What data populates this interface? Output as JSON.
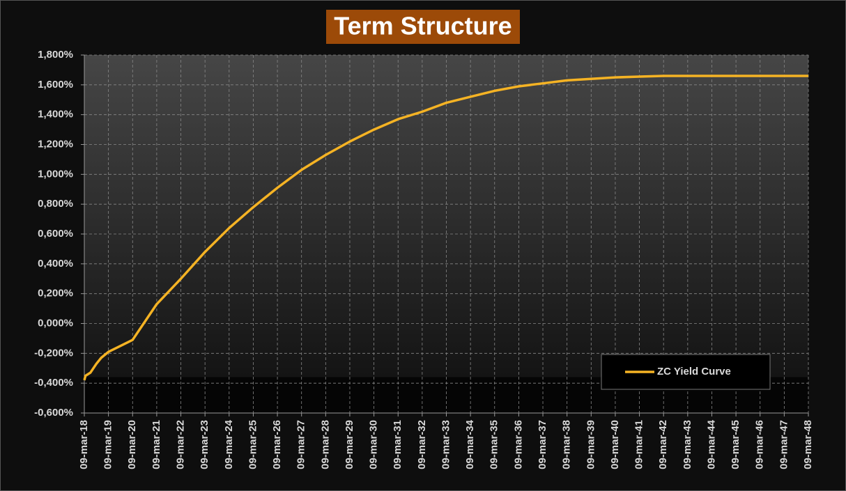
{
  "chart_data": {
    "type": "line",
    "title": "Term Structure",
    "x": [
      0,
      0.05,
      0.25,
      0.5,
      0.7,
      1,
      2,
      3,
      4,
      5,
      6,
      7,
      8,
      9,
      10,
      11,
      12,
      13,
      14,
      15,
      16,
      17,
      18,
      19,
      20,
      21,
      22,
      23,
      24,
      30
    ],
    "series": [
      {
        "name": "ZC Yield Curve",
        "color": "#f5b324",
        "values": [
          -0.38,
          -0.35,
          -0.33,
          -0.27,
          -0.23,
          -0.19,
          -0.11,
          0.13,
          0.3,
          0.48,
          0.64,
          0.78,
          0.91,
          1.03,
          1.13,
          1.22,
          1.3,
          1.37,
          1.42,
          1.48,
          1.52,
          1.56,
          1.59,
          1.61,
          1.63,
          1.64,
          1.65,
          1.655,
          1.66,
          1.66
        ]
      }
    ],
    "xlim": [
      0,
      30
    ],
    "xticks": [
      {
        "value": 0,
        "label": "09-mar-18"
      },
      {
        "value": 1,
        "label": "09-mar-19"
      },
      {
        "value": 2,
        "label": "09-mar-20"
      },
      {
        "value": 3,
        "label": "09-mar-21"
      },
      {
        "value": 4,
        "label": "09-mar-22"
      },
      {
        "value": 5,
        "label": "09-mar-23"
      },
      {
        "value": 6,
        "label": "09-mar-24"
      },
      {
        "value": 7,
        "label": "09-mar-25"
      },
      {
        "value": 8,
        "label": "09-mar-26"
      },
      {
        "value": 9,
        "label": "09-mar-27"
      },
      {
        "value": 10,
        "label": "09-mar-28"
      },
      {
        "value": 11,
        "label": "09-mar-29"
      },
      {
        "value": 12,
        "label": "09-mar-30"
      },
      {
        "value": 13,
        "label": "09-mar-31"
      },
      {
        "value": 14,
        "label": "09-mar-32"
      },
      {
        "value": 15,
        "label": "09-mar-33"
      },
      {
        "value": 16,
        "label": "09-mar-34"
      },
      {
        "value": 17,
        "label": "09-mar-35"
      },
      {
        "value": 18,
        "label": "09-mar-36"
      },
      {
        "value": 19,
        "label": "09-mar-37"
      },
      {
        "value": 20,
        "label": "09-mar-38"
      },
      {
        "value": 21,
        "label": "09-mar-39"
      },
      {
        "value": 22,
        "label": "09-mar-40"
      },
      {
        "value": 23,
        "label": "09-mar-41"
      },
      {
        "value": 24,
        "label": "09-mar-42"
      },
      {
        "value": 25,
        "label": "09-mar-43"
      },
      {
        "value": 26,
        "label": "09-mar-44"
      },
      {
        "value": 27,
        "label": "09-mar-45"
      },
      {
        "value": 28,
        "label": "09-mar-46"
      },
      {
        "value": 29,
        "label": "09-mar-47"
      },
      {
        "value": 30,
        "label": "09-mar-48"
      }
    ],
    "ylim": [
      -0.6,
      1.8
    ],
    "yticks": [
      {
        "value": -0.6,
        "label": "-0,600%"
      },
      {
        "value": -0.4,
        "label": "-0,400%"
      },
      {
        "value": -0.2,
        "label": "-0,200%"
      },
      {
        "value": 0,
        "label": "0,000%"
      },
      {
        "value": 0.2,
        "label": "0,200%"
      },
      {
        "value": 0.4,
        "label": "0,400%"
      },
      {
        "value": 0.6,
        "label": "0,600%"
      },
      {
        "value": 0.8,
        "label": "0,800%"
      },
      {
        "value": 1,
        "label": "1,000%"
      },
      {
        "value": 1.2,
        "label": "1,200%"
      },
      {
        "value": 1.4,
        "label": "1,400%"
      },
      {
        "value": 1.6,
        "label": "1,600%"
      },
      {
        "value": 1.8,
        "label": "1,800%"
      }
    ],
    "grid": true,
    "legend": "lower right"
  }
}
